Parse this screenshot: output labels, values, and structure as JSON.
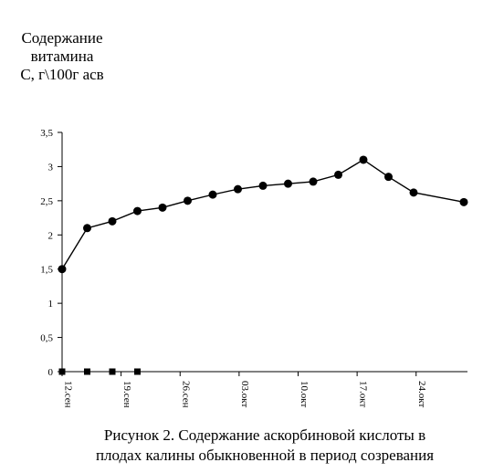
{
  "chart_data": {
    "type": "line",
    "ylabel_lines": [
      "Содержание",
      "витамина",
      "С, г\\100г асв"
    ],
    "caption_lines": [
      "Рисунок 2. Содержание аскорбиновой кислоты в",
      "плодах калины обыкновенной в период созревания"
    ],
    "ylim": [
      0,
      3.5
    ],
    "yticks": [
      {
        "value": 0,
        "label": "0"
      },
      {
        "value": 0.5,
        "label": "0,5"
      },
      {
        "value": 1,
        "label": "1"
      },
      {
        "value": 1.5,
        "label": "1,5"
      },
      {
        "value": 2,
        "label": "2"
      },
      {
        "value": 2.5,
        "label": "2,5"
      },
      {
        "value": 3,
        "label": "3"
      },
      {
        "value": 3.5,
        "label": "3,5"
      }
    ],
    "xlim": [
      0,
      16.5
    ],
    "xticks": [
      {
        "value": 0,
        "label": "12.сен"
      },
      {
        "value": 2.35,
        "label": "19.сен"
      },
      {
        "value": 4.7,
        "label": "26.сен"
      },
      {
        "value": 7.05,
        "label": "03.окт"
      },
      {
        "value": 9.4,
        "label": "10.окт"
      },
      {
        "value": 11.75,
        "label": "17.окт"
      },
      {
        "value": 14.1,
        "label": "24.окт"
      }
    ],
    "grid": false,
    "series": [
      {
        "marker": "circle",
        "color": "#000000",
        "points": [
          {
            "x": 0,
            "y": 1.5
          },
          {
            "x": 1,
            "y": 2.1
          },
          {
            "x": 2,
            "y": 2.2
          },
          {
            "x": 3,
            "y": 2.35
          },
          {
            "x": 4,
            "y": 2.4
          },
          {
            "x": 5,
            "y": 2.5
          },
          {
            "x": 6,
            "y": 2.59
          },
          {
            "x": 7,
            "y": 2.67
          },
          {
            "x": 8,
            "y": 2.72
          },
          {
            "x": 9,
            "y": 2.75
          },
          {
            "x": 10,
            "y": 2.78
          },
          {
            "x": 11,
            "y": 2.88
          },
          {
            "x": 12,
            "y": 3.1
          },
          {
            "x": 13,
            "y": 2.85
          },
          {
            "x": 14,
            "y": 2.62
          },
          {
            "x": 16,
            "y": 2.48
          }
        ]
      },
      {
        "marker": "square",
        "color": "#000000",
        "points": [
          {
            "x": 0,
            "y": 0
          },
          {
            "x": 1,
            "y": 0
          },
          {
            "x": 2,
            "y": 0
          },
          {
            "x": 3,
            "y": 0
          }
        ]
      }
    ]
  }
}
